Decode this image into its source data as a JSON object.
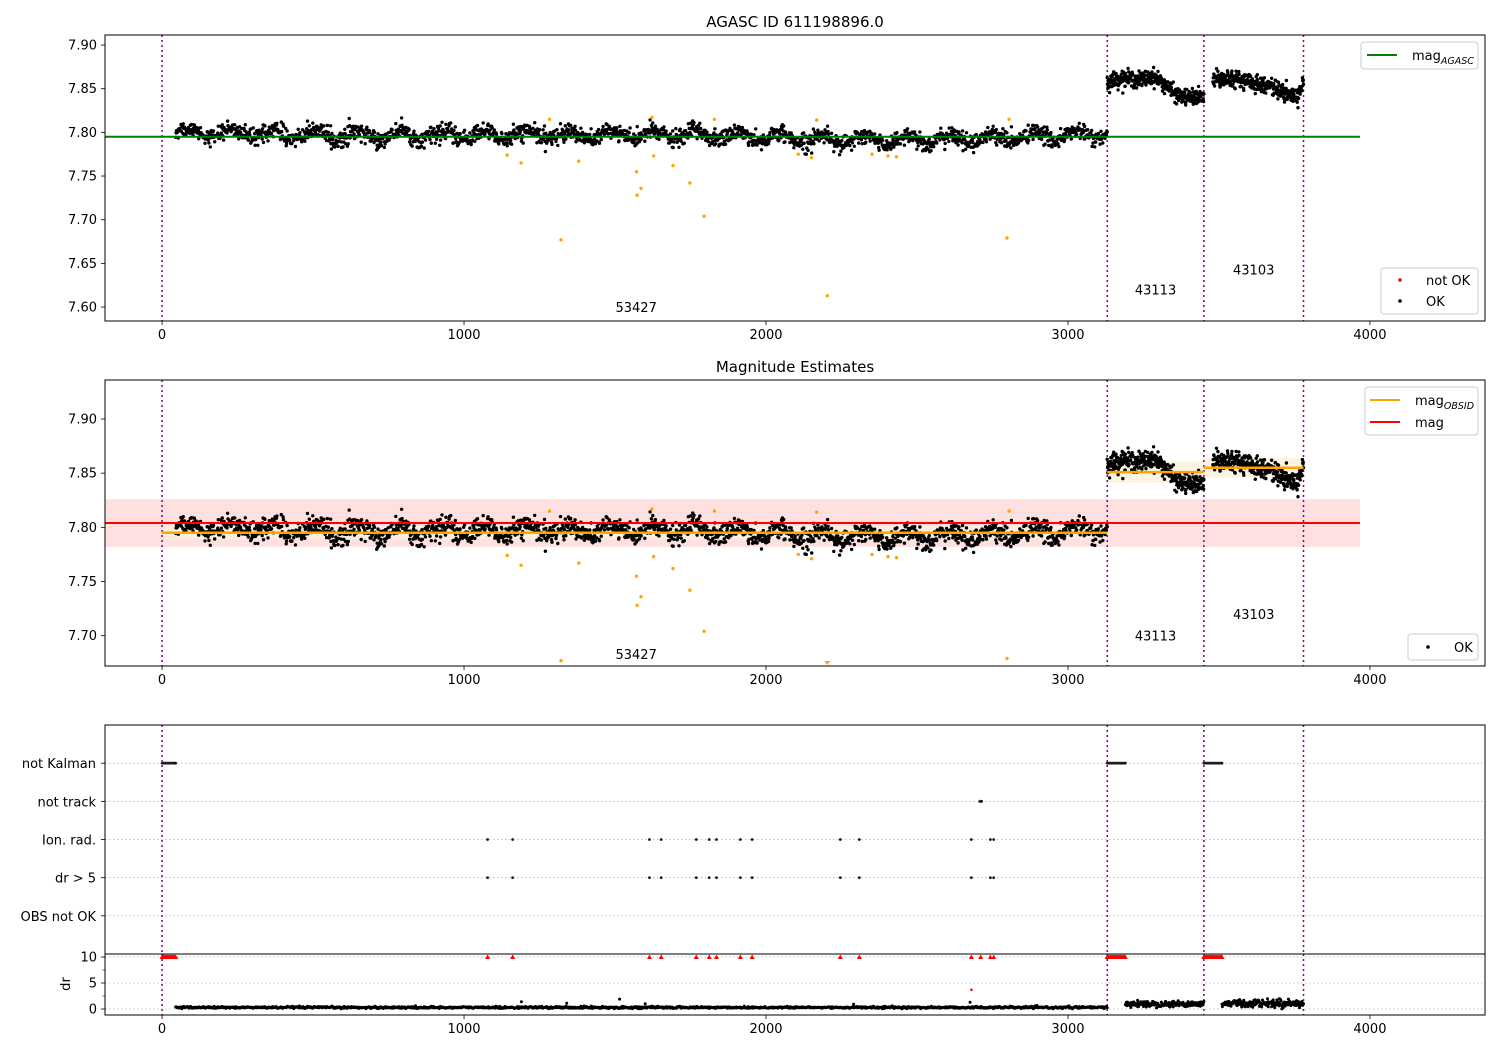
{
  "chart_data": {
    "type": "scatter",
    "xlim": [
      -189,
      4381
    ],
    "x_ticks": [
      0,
      1000,
      2000,
      3000,
      4000
    ],
    "obs_boundaries": [
      0,
      3130,
      3450,
      3780
    ],
    "colors": {
      "ok": "#000000",
      "not_ok": "#ffa500",
      "not_ok_legend": "#ff0000",
      "agasc": "#008000",
      "mag": "#ff0000",
      "mag_obsid": "#ffa500",
      "boundary": "#800080",
      "band_mag": "#ffe0e0",
      "band_obsid": "#fdf0dc"
    },
    "obs_labels": [
      {
        "text": "53427",
        "x": 1570,
        "y_mag": 7.6,
        "y_est": 7.683
      },
      {
        "text": "43113",
        "x": 3290,
        "y_mag": 7.62,
        "y_est": 7.7
      },
      {
        "text": "43103",
        "x": 3615,
        "y_mag": 7.643,
        "y_est": 7.72
      }
    ],
    "ok_segments": [
      {
        "x0": 45,
        "x1": 3130,
        "n": 2100,
        "std": 0.0048,
        "wiggle": 0.005,
        "trend": [
          [
            45,
            7.801
          ],
          [
            600,
            7.796
          ],
          [
            1200,
            7.797
          ],
          [
            1800,
            7.797
          ],
          [
            2300,
            7.791
          ],
          [
            2600,
            7.792
          ],
          [
            3130,
            7.798
          ]
        ]
      },
      {
        "x0": 3130,
        "x1": 3450,
        "n": 330,
        "std": 0.0045,
        "wiggle": 0.002,
        "trend": [
          [
            3130,
            7.858
          ],
          [
            3280,
            7.864
          ],
          [
            3350,
            7.845
          ],
          [
            3450,
            7.838
          ]
        ]
      },
      {
        "x0": 3480,
        "x1": 3780,
        "n": 330,
        "std": 0.0045,
        "wiggle": 0.002,
        "trend": [
          [
            3480,
            7.862
          ],
          [
            3600,
            7.86
          ],
          [
            3700,
            7.848
          ],
          [
            3760,
            7.842
          ],
          [
            3780,
            7.858
          ]
        ]
      }
    ],
    "not_ok_points": [
      [
        1143,
        7.774
      ],
      [
        1189,
        7.765
      ],
      [
        1283,
        7.815
      ],
      [
        1321,
        7.677
      ],
      [
        1380,
        7.767
      ],
      [
        1571,
        7.755
      ],
      [
        1586,
        7.736
      ],
      [
        1573,
        7.728
      ],
      [
        1622,
        7.817
      ],
      [
        1628,
        7.773
      ],
      [
        1692,
        7.762
      ],
      [
        1748,
        7.742
      ],
      [
        1795,
        7.704
      ],
      [
        1829,
        7.815
      ],
      [
        2107,
        7.775
      ],
      [
        2151,
        7.771
      ],
      [
        2168,
        7.814
      ],
      [
        2203,
        7.613
      ],
      [
        2351,
        7.775
      ],
      [
        2404,
        7.773
      ],
      [
        2432,
        7.772
      ],
      [
        2798,
        7.679
      ],
      [
        2805,
        7.815
      ]
    ],
    "panel_mag": {
      "title": "AGASC ID 611198896.0",
      "ylim": [
        7.584,
        7.9115
      ],
      "y_ticks": [
        7.6,
        7.65,
        7.7,
        7.75,
        7.8,
        7.85,
        7.9
      ],
      "mag_agasc": {
        "value": 7.795,
        "x0": -189,
        "x1": 3967
      },
      "legend_lines": [
        {
          "label": "mag",
          "sub": "AGASC",
          "color": "#008000"
        }
      ],
      "legend_points": [
        {
          "label": "not OK",
          "color": "#ff0000"
        },
        {
          "label": "OK",
          "color": "#000000"
        }
      ]
    },
    "panel_est": {
      "title": "Magnitude Estimates",
      "ylim": [
        7.672,
        7.936
      ],
      "y_ticks": [
        7.7,
        7.75,
        7.8,
        7.85,
        7.9
      ],
      "mag": {
        "value": 7.804,
        "band": [
          7.782,
          7.826
        ],
        "x0": -189,
        "x1": 3967
      },
      "mag_obsid": [
        {
          "x0": 0,
          "x1": 3130,
          "value": 7.795,
          "band": [
            7.789,
            7.801
          ]
        },
        {
          "x0": 3130,
          "x1": 3450,
          "value": 7.851,
          "band": [
            7.841,
            7.861
          ]
        },
        {
          "x0": 3450,
          "x1": 3780,
          "value": 7.855,
          "band": [
            7.846,
            7.864
          ]
        }
      ],
      "legend_lines": [
        {
          "label": "mag",
          "sub": "OBSID",
          "color": "#ffa500"
        },
        {
          "label": "mag",
          "sub": "",
          "color": "#ff0000"
        }
      ],
      "legend_points": [
        {
          "label": "OK",
          "color": "#000000"
        }
      ]
    },
    "panel_flags": {
      "categories": [
        "OBS not OK",
        "dr > 5",
        "Ion. rad.",
        "not track",
        "not Kalman"
      ],
      "ylim": [
        -1,
        5
      ],
      "not_kalman_ranges": [
        [
          0,
          45
        ],
        [
          3130,
          3190
        ],
        [
          3450,
          3510
        ]
      ],
      "not_track": [
        2708,
        2710,
        2712,
        2714
      ],
      "ion_rad": [
        1078,
        1161,
        1614,
        1653,
        1769,
        1812,
        1836,
        1915,
        1954,
        2246,
        2309,
        2680,
        2743,
        2754
      ],
      "dr_gt5": [
        1078,
        1161,
        1614,
        1653,
        1769,
        1812,
        1836,
        1915,
        1954,
        2246,
        2309,
        2680,
        2743,
        2754
      ],
      "obs_not_ok": []
    },
    "panel_dr": {
      "ylabel": "dr",
      "ylim": [
        -1.15,
        10.58
      ],
      "y_ticks": [
        0,
        5,
        10
      ],
      "y_minor_ticks": [
        2.5,
        7.5
      ],
      "clipped_at": 10,
      "clipped_x": [
        1078,
        1161,
        1614,
        1653,
        1769,
        1812,
        1836,
        1915,
        1954,
        2246,
        2309,
        2680,
        2711,
        2743,
        2754
      ],
      "clipped_ranges": [
        [
          0,
          45
        ],
        [
          3130,
          3190
        ],
        [
          3450,
          3510
        ]
      ],
      "red_points": [
        [
          2680,
          3.7
        ]
      ],
      "segments": [
        {
          "x0": 45,
          "x1": 3130,
          "n": 1500,
          "mean": 0.3,
          "std": 0.1
        },
        {
          "x0": 3190,
          "x1": 3450,
          "n": 200,
          "mean": 1.0,
          "std": 0.28
        },
        {
          "x0": 3510,
          "x1": 3780,
          "n": 200,
          "mean": 1.1,
          "std": 0.35
        }
      ],
      "spikes": [
        [
          1190,
          1.4
        ],
        [
          1340,
          1.1
        ],
        [
          1515,
          1.9
        ],
        [
          1600,
          1.0
        ],
        [
          2290,
          0.9
        ],
        [
          2676,
          1.3
        ],
        [
          3700,
          2.0
        ],
        [
          3620,
          1.8
        ]
      ]
    }
  }
}
